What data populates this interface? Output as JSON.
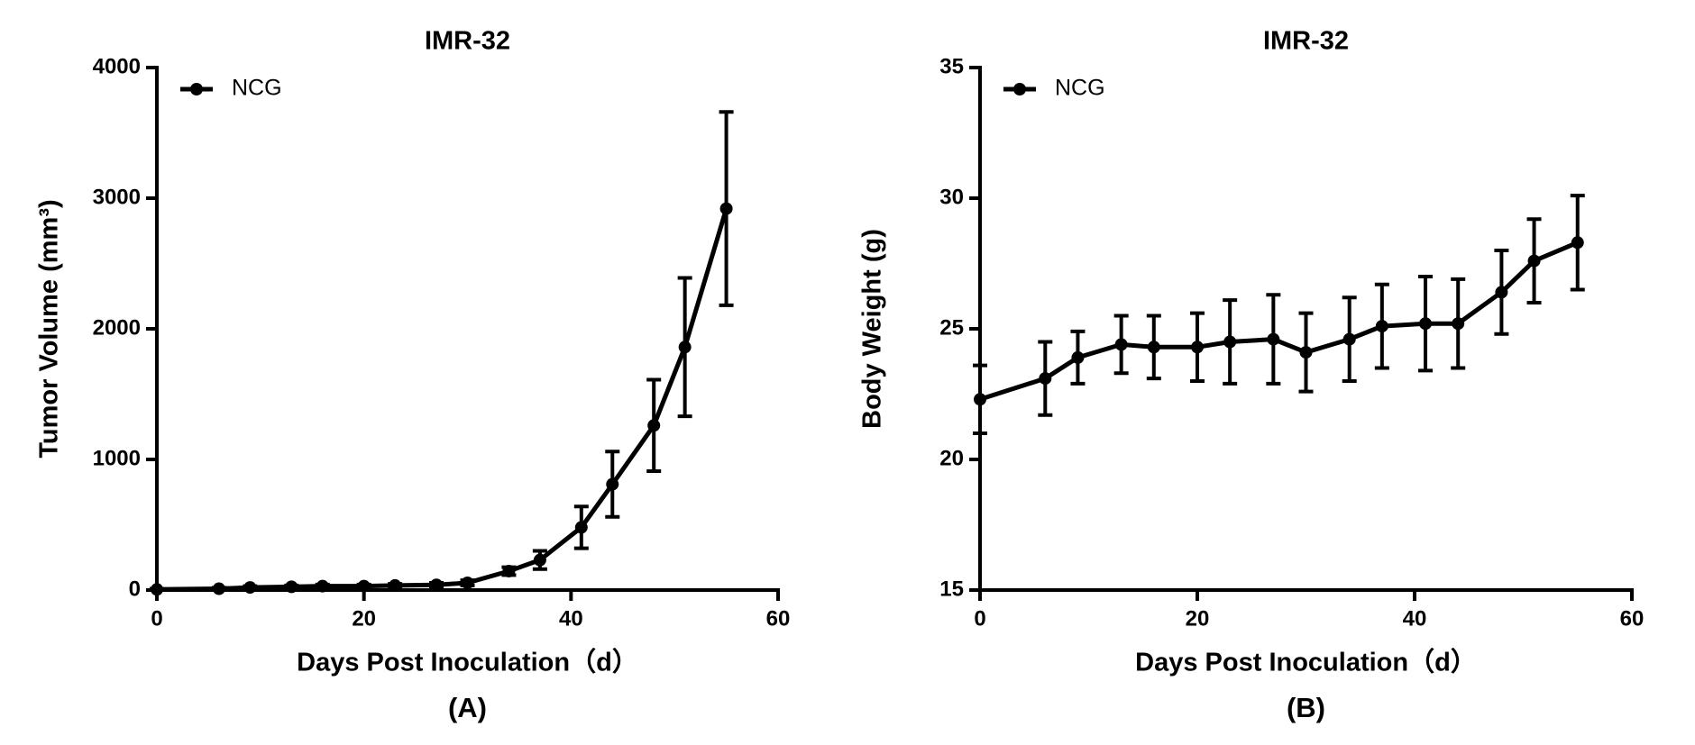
{
  "chart_data": [
    {
      "type": "line",
      "title": "IMR-32",
      "panel_label": "(A)",
      "xlabel": "Days Post Inoculation（d）",
      "ylabel": "Tumor Volume (mm³)",
      "x": [
        0,
        6,
        9,
        13,
        16,
        20,
        23,
        27,
        30,
        34,
        37,
        41,
        44,
        48,
        51,
        55
      ],
      "series": [
        {
          "name": "NCG",
          "color": "#000000",
          "values": [
            5,
            10,
            20,
            25,
            30,
            30,
            35,
            40,
            55,
            145,
            230,
            480,
            810,
            1260,
            1860,
            2920
          ],
          "errors": [
            5,
            8,
            10,
            10,
            12,
            12,
            12,
            15,
            20,
            30,
            70,
            160,
            250,
            350,
            530,
            740
          ]
        }
      ],
      "xlim": [
        0,
        60
      ],
      "ylim": [
        0,
        4000
      ],
      "xticks": [
        0,
        20,
        40,
        60
      ],
      "yticks": [
        0,
        1000,
        2000,
        3000,
        4000
      ],
      "legend": "upper left"
    },
    {
      "type": "line",
      "title": "IMR-32",
      "panel_label": "(B)",
      "xlabel": "Days Post Inoculation（d）",
      "ylabel": "Body Weight (g)",
      "x": [
        0,
        6,
        9,
        13,
        16,
        20,
        23,
        27,
        30,
        34,
        37,
        41,
        44,
        48,
        51,
        55
      ],
      "series": [
        {
          "name": "NCG",
          "color": "#000000",
          "values": [
            22.3,
            23.1,
            23.9,
            24.4,
            24.3,
            24.3,
            24.5,
            24.6,
            24.1,
            24.6,
            25.1,
            25.2,
            25.2,
            26.4,
            27.6,
            28.3
          ],
          "errors": [
            1.3,
            1.4,
            1.0,
            1.1,
            1.2,
            1.3,
            1.6,
            1.7,
            1.5,
            1.6,
            1.6,
            1.8,
            1.7,
            1.6,
            1.6,
            1.8
          ]
        }
      ],
      "xlim": [
        0,
        60
      ],
      "ylim": [
        15,
        35
      ],
      "xticks": [
        0,
        20,
        40,
        60
      ],
      "yticks": [
        15,
        20,
        25,
        30,
        35
      ],
      "legend": "upper left"
    }
  ]
}
